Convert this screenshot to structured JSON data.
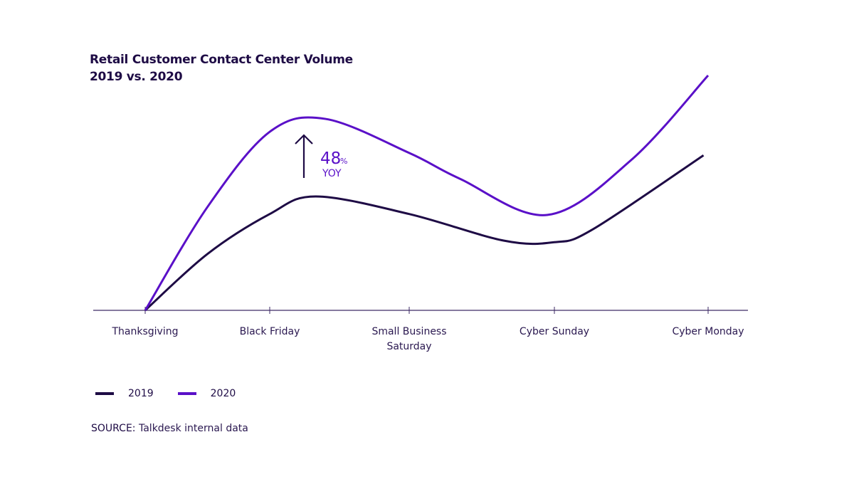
{
  "chart_data": {
    "type": "line",
    "title": "Retail Customer Contact Center Volume",
    "subtitle": "2019 vs. 2020",
    "xlabel": "",
    "ylabel": "",
    "categories": [
      "Thanksgiving",
      "Black Friday",
      "Small Business\nSaturday",
      "Cyber Sunday",
      "Cyber Monday"
    ],
    "ylim": [
      0,
      100
    ],
    "grid": false,
    "legend_position": "bottom-left",
    "series": [
      {
        "name": "2019",
        "color": "#1e0b45",
        "points": [
          [
            0,
            0
          ],
          [
            0.5,
            24
          ],
          [
            1,
            41
          ],
          [
            1.33,
            48.5
          ],
          [
            2,
            41
          ],
          [
            2.65,
            29.7
          ],
          [
            3,
            29
          ],
          [
            3.25,
            34.5
          ],
          [
            3.97,
            66
          ]
        ]
      },
      {
        "name": "2020",
        "color": "#5a10c8",
        "points": [
          [
            0,
            0
          ],
          [
            0.5,
            44
          ],
          [
            1,
            76
          ],
          [
            1.4,
            81.5
          ],
          [
            2,
            67
          ],
          [
            2.35,
            56
          ],
          [
            2.95,
            40.6
          ],
          [
            3.5,
            64
          ],
          [
            4,
            100
          ]
        ]
      }
    ],
    "annotation": {
      "value": "48",
      "unit": "%",
      "label": "YOY"
    }
  },
  "source": {
    "label": "SOURCE:",
    "text": "Talkdesk internal data"
  }
}
